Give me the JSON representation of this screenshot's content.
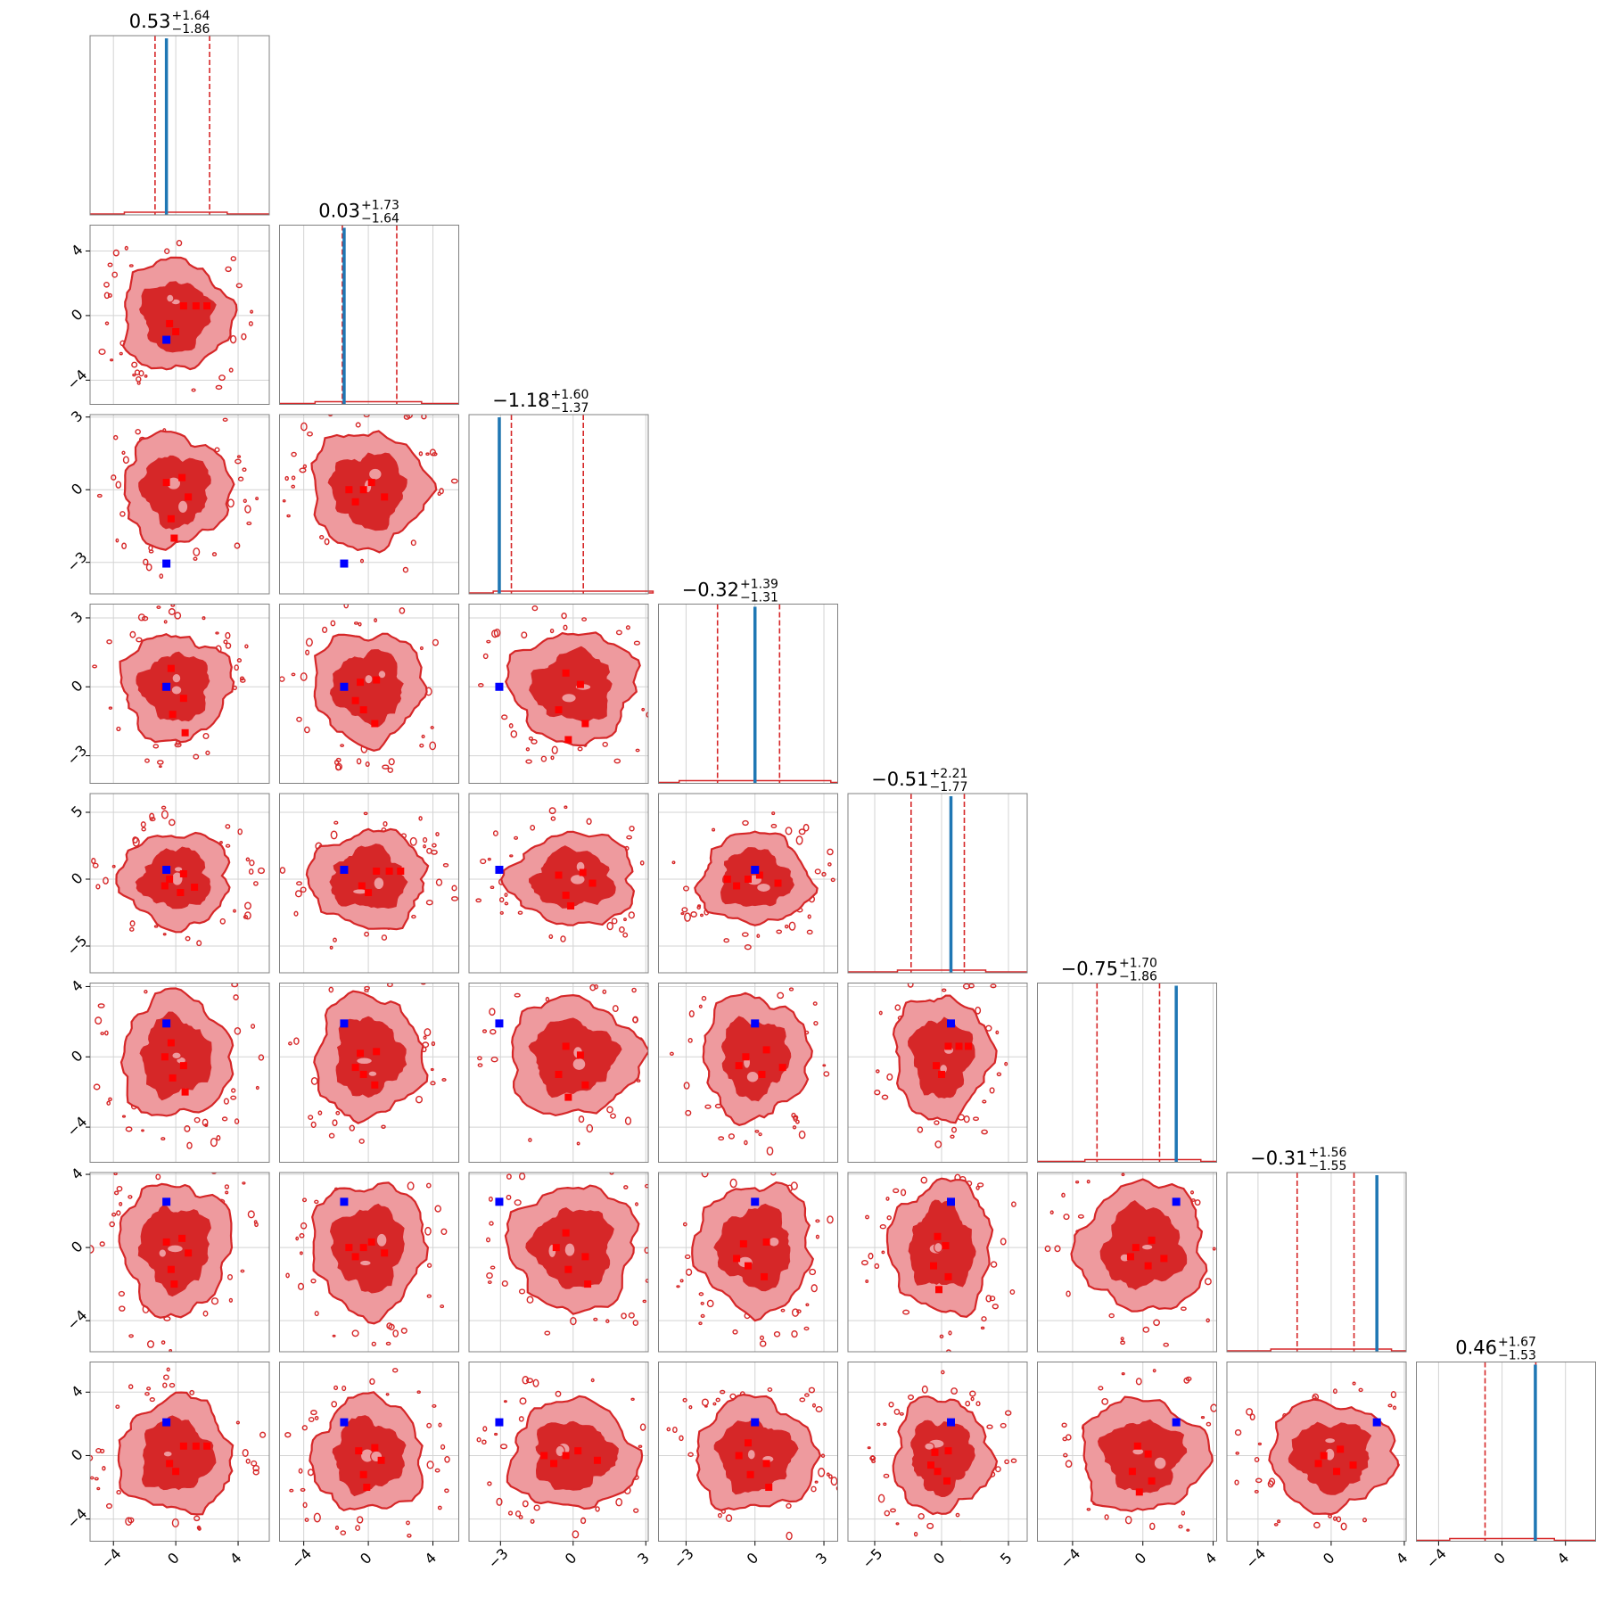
{
  "chart_data": {
    "type": "corner",
    "n_params": 8,
    "grid": true,
    "colors": {
      "contour_inner": "#d62728",
      "contour_outer": "#ee9a9e",
      "contour_line": "#d62728",
      "quantile_line": "#d62728",
      "truth_line": "#1f77b4",
      "red_marker": "#ff0000",
      "truth_marker": "#0000ff",
      "frame": "#808080",
      "grid": "#d3d3d3"
    },
    "axes": [
      {
        "lim": [
          -5.5,
          6.0
        ],
        "ticks": [
          -4,
          0,
          4
        ],
        "tick_labels": [
          "−4",
          "0",
          "4"
        ]
      },
      {
        "lim": [
          -5.5,
          5.6
        ],
        "ticks": [
          -4,
          0,
          4
        ],
        "tick_labels": [
          "−4",
          "0",
          "4"
        ]
      },
      {
        "lim": [
          -4.3,
          3.1
        ],
        "ticks": [
          -3,
          0,
          3
        ],
        "tick_labels": [
          "−3",
          "0",
          "3"
        ]
      },
      {
        "lim": [
          -4.2,
          3.6
        ],
        "ticks": [
          -3,
          0,
          3
        ],
        "tick_labels": [
          "−3",
          "0",
          "3"
        ]
      },
      {
        "lim": [
          -7.0,
          6.4
        ],
        "ticks": [
          -5,
          0,
          5
        ],
        "tick_labels": [
          "−5",
          "0",
          "5"
        ]
      },
      {
        "lim": [
          -6.0,
          4.2
        ],
        "ticks": [
          -4,
          0,
          4
        ],
        "tick_labels": [
          "−4",
          "0",
          "4"
        ]
      },
      {
        "lim": [
          -5.7,
          4.1
        ],
        "ticks": [
          -4,
          0,
          4
        ],
        "tick_labels": [
          "−4",
          "0",
          "4"
        ]
      },
      {
        "lim": [
          -5.4,
          5.9
        ],
        "ticks": [
          -4,
          0,
          4
        ],
        "tick_labels": [
          "−4",
          "0",
          "4"
        ]
      }
    ],
    "titles": [
      {
        "value": "0.53",
        "plus": "+1.64",
        "minus": "−1.86"
      },
      {
        "value": "0.03",
        "plus": "+1.73",
        "minus": "−1.64"
      },
      {
        "value": "−1.18",
        "plus": "+1.60",
        "minus": "−1.37"
      },
      {
        "value": "−0.32",
        "plus": "+1.39",
        "minus": "−1.31"
      },
      {
        "value": "−0.51",
        "plus": "+2.21",
        "minus": "−1.77"
      },
      {
        "value": "−0.75",
        "plus": "+1.70",
        "minus": "−1.86"
      },
      {
        "value": "−0.31",
        "plus": "+1.56",
        "minus": "−1.55"
      },
      {
        "value": "0.46",
        "plus": "+1.67",
        "minus": "−1.53"
      }
    ],
    "quantiles": [
      [
        -1.33,
        2.17
      ],
      [
        -1.61,
        1.76
      ],
      [
        -2.55,
        0.42
      ],
      [
        -1.63,
        1.07
      ],
      [
        -2.28,
        1.7
      ],
      [
        -2.61,
        0.95
      ],
      [
        -1.86,
        1.25
      ],
      [
        -1.07,
        2.13
      ]
    ],
    "truths": [
      -0.6,
      -1.5,
      -3.05,
      0.0,
      0.7,
      1.9,
      2.5,
      2.1
    ],
    "center_markers": [
      [
        [
          0.5,
          0.6
        ],
        [
          -0.4,
          -0.5
        ],
        [
          1.3,
          0.6
        ],
        [
          2.0,
          0.6
        ],
        [
          0.0,
          -1.0
        ]
      ],
      [
        [
          0.4,
          0.5
        ],
        [
          -0.6,
          0.3
        ],
        [
          0.8,
          -0.3
        ],
        [
          -0.3,
          -1.2
        ],
        [
          -0.1,
          -2.0
        ]
      ],
      [
        [
          -0.3,
          0.0
        ],
        [
          0.2,
          0.3
        ],
        [
          -0.8,
          -0.5
        ],
        [
          1.0,
          -0.3
        ],
        [
          -1.2,
          0.0
        ]
      ],
      [
        [
          -0.7,
          0.0
        ],
        [
          -0.3,
          0.8
        ],
        [
          0.5,
          -0.5
        ],
        [
          -0.2,
          -1.2
        ],
        [
          0.6,
          -2.0
        ]
      ],
      [
        [
          -0.5,
          0.2
        ],
        [
          -0.8,
          -0.6
        ],
        [
          0.5,
          0.3
        ],
        [
          -0.3,
          -1.0
        ],
        [
          0.4,
          -1.6
        ]
      ],
      [
        [
          -0.3,
          0.6
        ],
        [
          0.3,
          0.1
        ],
        [
          -0.6,
          -1.0
        ],
        [
          0.5,
          -1.6
        ],
        [
          -0.2,
          -2.3
        ]
      ],
      [
        [
          -0.4,
          0.0
        ],
        [
          0.5,
          0.4
        ],
        [
          -0.7,
          -0.5
        ],
        [
          0.3,
          -1.0
        ],
        [
          1.2,
          -0.6
        ]
      ]
    ],
    "panels": [
      {
        "row": 1,
        "col": 0,
        "rx": 3.5,
        "ry": 3.4
      },
      {
        "row": 2,
        "col": 0,
        "rx": 3.4,
        "ry": 2.3
      },
      {
        "row": 2,
        "col": 1,
        "rx": 3.6,
        "ry": 2.4
      },
      {
        "row": 3,
        "col": 0,
        "rx": 3.5,
        "ry": 2.3
      },
      {
        "row": 3,
        "col": 1,
        "rx": 3.4,
        "ry": 2.4
      },
      {
        "row": 3,
        "col": 2,
        "rx": 2.6,
        "ry": 2.4
      },
      {
        "row": 4,
        "col": 0,
        "rx": 3.5,
        "ry": 3.5
      },
      {
        "row": 4,
        "col": 1,
        "rx": 3.6,
        "ry": 3.6
      },
      {
        "row": 4,
        "col": 2,
        "rx": 2.6,
        "ry": 3.4
      },
      {
        "row": 4,
        "col": 3,
        "rx": 2.4,
        "ry": 3.4
      },
      {
        "row": 5,
        "col": 0,
        "rx": 3.5,
        "ry": 3.5
      },
      {
        "row": 5,
        "col": 1,
        "rx": 3.3,
        "ry": 3.5
      },
      {
        "row": 5,
        "col": 2,
        "rx": 2.7,
        "ry": 3.3
      },
      {
        "row": 5,
        "col": 3,
        "rx": 2.3,
        "ry": 3.5
      },
      {
        "row": 5,
        "col": 4,
        "rx": 3.6,
        "ry": 3.5
      },
      {
        "row": 6,
        "col": 0,
        "rx": 3.5,
        "ry": 3.6
      },
      {
        "row": 6,
        "col": 1,
        "rx": 3.5,
        "ry": 3.6
      },
      {
        "row": 6,
        "col": 2,
        "rx": 2.6,
        "ry": 3.4
      },
      {
        "row": 6,
        "col": 3,
        "rx": 2.5,
        "ry": 3.5
      },
      {
        "row": 6,
        "col": 4,
        "rx": 3.8,
        "ry": 3.6
      },
      {
        "row": 6,
        "col": 5,
        "rx": 3.6,
        "ry": 3.5
      },
      {
        "row": 7,
        "col": 0,
        "rx": 3.6,
        "ry": 3.6
      },
      {
        "row": 7,
        "col": 1,
        "rx": 3.4,
        "ry": 3.6
      },
      {
        "row": 7,
        "col": 2,
        "rx": 2.6,
        "ry": 3.4
      },
      {
        "row": 7,
        "col": 3,
        "rx": 2.6,
        "ry": 3.5
      },
      {
        "row": 7,
        "col": 4,
        "rx": 3.6,
        "ry": 3.6
      },
      {
        "row": 7,
        "col": 5,
        "rx": 3.6,
        "ry": 3.5
      },
      {
        "row": 7,
        "col": 6,
        "rx": 3.4,
        "ry": 3.4
      }
    ]
  }
}
